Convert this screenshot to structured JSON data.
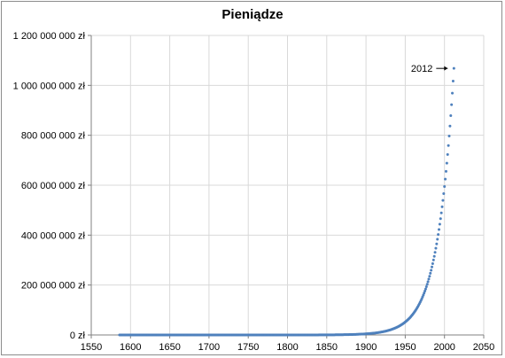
{
  "chart_data": {
    "type": "scatter",
    "title": "Pieniądze",
    "xlabel": "",
    "ylabel": "",
    "xlim": [
      1550,
      2050
    ],
    "ylim": [
      0,
      1200000000
    ],
    "x_ticks": [
      "1550",
      "1600",
      "1650",
      "1700",
      "1750",
      "1800",
      "1850",
      "1900",
      "1950",
      "2000",
      "2050"
    ],
    "y_ticks": [
      "0 zł",
      "200 000 000 zł",
      "400 000 000 zł",
      "600 000 000 zł",
      "800 000 000 zł",
      "1 000 000 000 zł",
      "1 200 000 000 zł"
    ],
    "series": [
      {
        "color": "#4f81bd",
        "x_start": 1586,
        "x_end": 2012,
        "x_step": 1,
        "y_start": 1,
        "y_end": 1068000000,
        "growth": "exponential"
      }
    ],
    "annotation": {
      "text": "2012",
      "x": 2012,
      "y": 1068000000,
      "arrow": "right"
    },
    "grid": "horizontal and vertical",
    "legend": "none"
  }
}
